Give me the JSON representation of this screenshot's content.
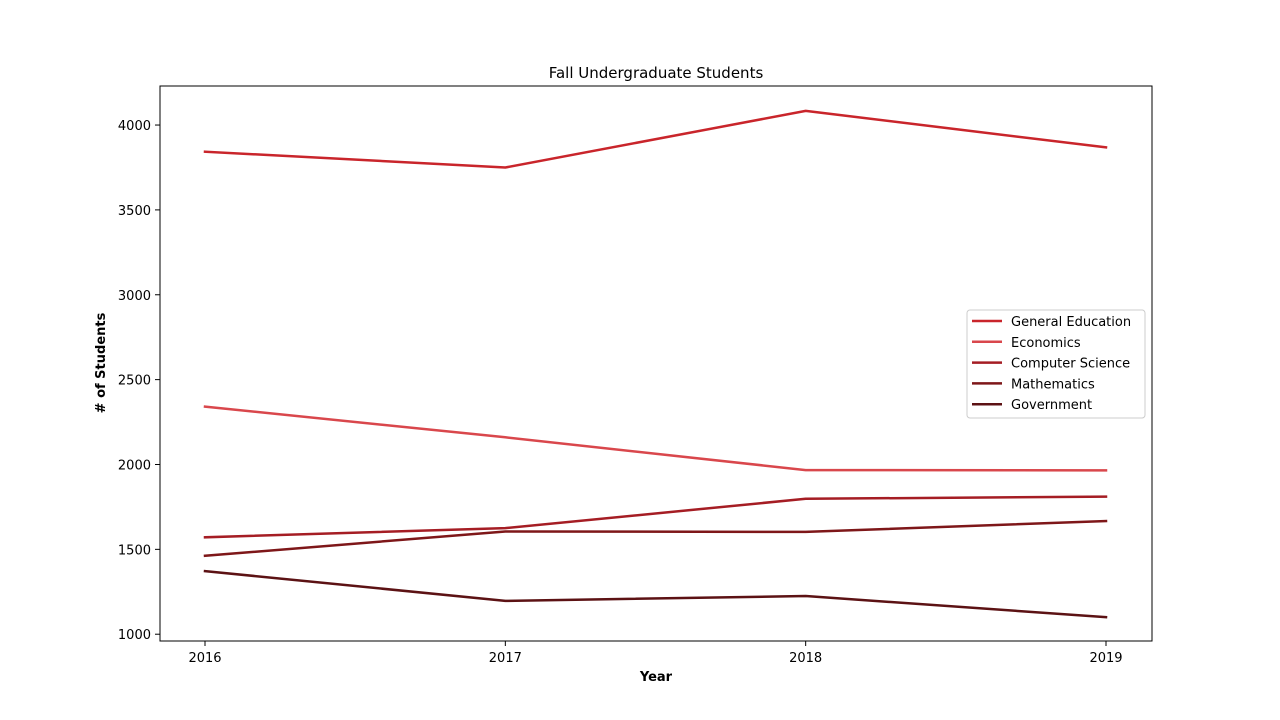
{
  "chart_data": {
    "type": "line",
    "title": "Fall Undergraduate Students",
    "xlabel": "Year",
    "ylabel": "# of Students",
    "x": [
      "2016",
      "2017",
      "2018",
      "2019"
    ],
    "ylim": [
      960,
      4230
    ],
    "yticks": [
      "1000",
      "1500",
      "2000",
      "2500",
      "3000",
      "3500",
      "4000"
    ],
    "grid": false,
    "legend_position": "center-right",
    "series": [
      {
        "name": "General Education",
        "color": "#c9252b",
        "values": [
          3843,
          3750,
          4083,
          3868
        ]
      },
      {
        "name": "Economics",
        "color": "#d9474c",
        "values": [
          2341,
          2160,
          1967,
          1965
        ]
      },
      {
        "name": "Computer Science",
        "color": "#a51d24",
        "values": [
          1571,
          1625,
          1798,
          1811
        ]
      },
      {
        "name": "Mathematics",
        "color": "#7e1719",
        "values": [
          1462,
          1605,
          1603,
          1667
        ]
      },
      {
        "name": "Government",
        "color": "#5c1214",
        "values": [
          1372,
          1196,
          1225,
          1100
        ]
      }
    ]
  }
}
